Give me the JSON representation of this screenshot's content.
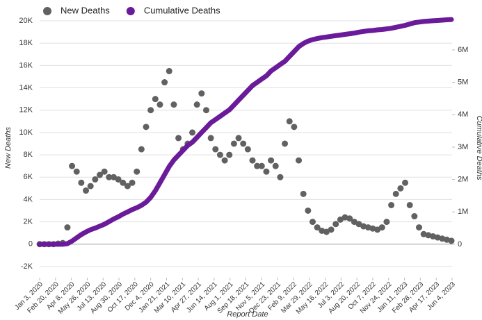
{
  "chart_data": {
    "type": "scatter",
    "x_label": "Report Date",
    "y_label": "New Deaths",
    "y2_label": "Cumulative Deaths",
    "xlim": [
      "Jan 3, 2020",
      "Jun 4, 2023"
    ],
    "xticks": [
      "Jan 3, 2020",
      "Feb 20, 2020",
      "Apr 8, 2020",
      "May 26, 2020",
      "Jul 13, 2020",
      "Aug 30, 2020",
      "Oct 17, 2020",
      "Dec 4, 2020",
      "Jan 21, 2021",
      "Mar 10, 2021",
      "Apr 27, 2021",
      "Jun 14, 2021",
      "Aug 1, 2021",
      "Sep 18, 2021",
      "Nov 5, 2021",
      "Dec 23, 2021",
      "Feb 9, 2022",
      "Mar 29, 2022",
      "May 16, 2022",
      "Jul 3, 2022",
      "Aug 20, 2022",
      "Oct 7, 2022",
      "Nov 24, 2022",
      "Jan 11, 2023",
      "Feb 28, 2023",
      "Apr 17, 2023",
      "Jun 4, 2023"
    ],
    "ylim": [
      -3000,
      20500
    ],
    "yticks": [
      {
        "value": -2000,
        "label": "-2K"
      },
      0,
      {
        "value": 2000,
        "label": "2K"
      },
      {
        "value": 4000,
        "label": "4K"
      },
      {
        "value": 6000,
        "label": "6K"
      },
      {
        "value": 8000,
        "label": "8K"
      },
      {
        "value": 10000,
        "label": "10K"
      },
      {
        "value": 12000,
        "label": "12K"
      },
      {
        "value": 14000,
        "label": "14K"
      },
      {
        "value": 16000,
        "label": "16K"
      },
      {
        "value": 18000,
        "label": "18K"
      },
      {
        "value": 20000,
        "label": "20K"
      }
    ],
    "y2lim": [
      -1030000,
      7070000
    ],
    "y2ticks": [
      0,
      {
        "value": 1000000,
        "label": "1M"
      },
      {
        "value": 2000000,
        "label": "2M"
      },
      {
        "value": 3000000,
        "label": "3M"
      },
      {
        "value": 4000000,
        "label": "4M"
      },
      {
        "value": 5000000,
        "label": "5M"
      },
      {
        "value": 6000000,
        "label": "6M"
      }
    ],
    "grid": true,
    "legend": "top-left",
    "x": [
      "2020-01-03",
      "2020-01-17",
      "2020-01-31",
      "2020-02-14",
      "2020-02-28",
      "2020-03-13",
      "2020-03-27",
      "2020-04-10",
      "2020-04-24",
      "2020-05-08",
      "2020-05-22",
      "2020-06-05",
      "2020-06-19",
      "2020-07-03",
      "2020-07-17",
      "2020-07-31",
      "2020-08-14",
      "2020-08-28",
      "2020-09-11",
      "2020-09-25",
      "2020-10-09",
      "2020-10-23",
      "2020-11-06",
      "2020-11-20",
      "2020-12-04",
      "2020-12-18",
      "2021-01-01",
      "2021-01-15",
      "2021-01-29",
      "2021-02-12",
      "2021-02-26",
      "2021-03-12",
      "2021-03-26",
      "2021-04-09",
      "2021-04-23",
      "2021-05-07",
      "2021-05-21",
      "2021-06-04",
      "2021-06-18",
      "2021-07-02",
      "2021-07-16",
      "2021-07-30",
      "2021-08-13",
      "2021-08-27",
      "2021-09-10",
      "2021-09-24",
      "2021-10-08",
      "2021-10-22",
      "2021-11-05",
      "2021-11-19",
      "2021-12-03",
      "2021-12-17",
      "2021-12-31",
      "2022-01-14",
      "2022-01-28",
      "2022-02-11",
      "2022-02-25",
      "2022-03-11",
      "2022-03-25",
      "2022-04-08",
      "2022-04-22",
      "2022-05-06",
      "2022-05-20",
      "2022-06-03",
      "2022-06-17",
      "2022-07-01",
      "2022-07-15",
      "2022-07-29",
      "2022-08-12",
      "2022-08-26",
      "2022-09-09",
      "2022-09-23",
      "2022-10-07",
      "2022-10-21",
      "2022-11-04",
      "2022-11-18",
      "2022-12-02",
      "2022-12-16",
      "2022-12-30",
      "2023-01-13",
      "2023-01-27",
      "2023-02-10",
      "2023-02-24",
      "2023-03-10",
      "2023-03-24",
      "2023-04-07",
      "2023-04-21",
      "2023-05-05",
      "2023-05-19",
      "2023-06-02"
    ],
    "series": [
      {
        "name": "New Deaths",
        "type": "scatter",
        "color": "#616161",
        "values": [
          0,
          0,
          0,
          0,
          50,
          100,
          1500,
          7000,
          6500,
          5500,
          4800,
          5200,
          5800,
          6200,
          6500,
          6000,
          6000,
          5800,
          5500,
          5200,
          5500,
          6500,
          8500,
          10500,
          12000,
          13000,
          12500,
          14500,
          15500,
          12500,
          9500,
          8500,
          9000,
          10000,
          12500,
          13500,
          12000,
          9500,
          8500,
          8000,
          7500,
          8000,
          9000,
          9500,
          9000,
          8500,
          7500,
          7000,
          7000,
          6500,
          7500,
          7000,
          6000,
          9000,
          11000,
          10500,
          7500,
          4500,
          3000,
          2000,
          1500,
          1200,
          1100,
          1300,
          1800,
          2200,
          2400,
          2300,
          2000,
          1800,
          1600,
          1500,
          1400,
          1300,
          1500,
          2000,
          3500,
          4500,
          5000,
          5500,
          3500,
          2500,
          1500,
          900,
          800,
          700,
          600,
          500,
          400,
          300
        ]
      },
      {
        "name": "Cumulative Deaths",
        "type": "line",
        "axis": "y2",
        "color": "#6a1b9a",
        "values": [
          0,
          0,
          0,
          0,
          0,
          0,
          20000,
          100000,
          200000,
          300000,
          380000,
          450000,
          500000,
          560000,
          620000,
          700000,
          780000,
          850000,
          930000,
          1000000,
          1070000,
          1130000,
          1200000,
          1300000,
          1450000,
          1650000,
          1900000,
          2150000,
          2400000,
          2600000,
          2750000,
          2900000,
          3050000,
          3150000,
          3300000,
          3450000,
          3600000,
          3750000,
          3850000,
          3950000,
          4050000,
          4150000,
          4300000,
          4450000,
          4600000,
          4750000,
          4900000,
          5000000,
          5100000,
          5200000,
          5350000,
          5450000,
          5550000,
          5650000,
          5800000,
          5950000,
          6100000,
          6200000,
          6270000,
          6320000,
          6350000,
          6380000,
          6400000,
          6420000,
          6440000,
          6460000,
          6480000,
          6500000,
          6520000,
          6550000,
          6570000,
          6590000,
          6600000,
          6620000,
          6630000,
          6650000,
          6670000,
          6700000,
          6730000,
          6760000,
          6800000,
          6840000,
          6860000,
          6880000,
          6890000,
          6900000,
          6910000,
          6920000,
          6930000,
          6940000
        ]
      }
    ]
  }
}
